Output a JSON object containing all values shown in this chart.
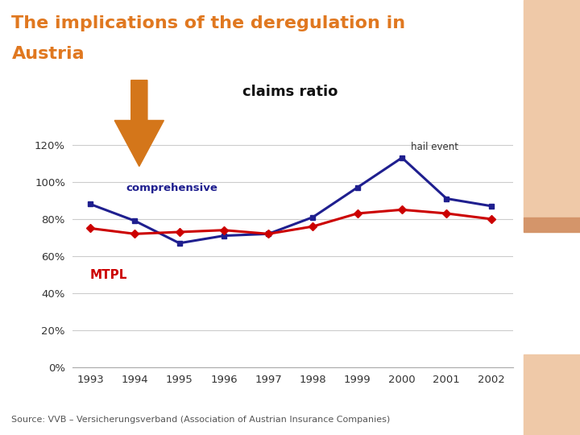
{
  "title_line1": "The implications of the deregulation in",
  "title_line2": "Austria",
  "title_color": "#E07820",
  "chart_label": "claims ratio",
  "years": [
    1993,
    1994,
    1995,
    1996,
    1997,
    1998,
    1999,
    2000,
    2001,
    2002
  ],
  "comprehensive": [
    88,
    79,
    67,
    71,
    72,
    81,
    97,
    113,
    91,
    87
  ],
  "mtpl": [
    75,
    72,
    73,
    74,
    72,
    76,
    83,
    85,
    83,
    80
  ],
  "comprehensive_color": "#1F1F8F",
  "mtpl_color": "#CC0000",
  "comprehensive_label": "comprehensive",
  "mtpl_label": "MTPL",
  "hail_event_label": "hail event",
  "ylim": [
    0,
    130
  ],
  "yticks": [
    0,
    20,
    40,
    60,
    80,
    100,
    120
  ],
  "ytick_labels": [
    "0%",
    "20%",
    "40%",
    "60%",
    "80%",
    "100%",
    "120%"
  ],
  "bg_color": "#FFFFFF",
  "plot_bg_color": "#FFFFFF",
  "source_text": "Source: VVB – Versicherungsverband (Association of Austrian Insurance Companies)",
  "arrow_color": "#D4761A",
  "right_bar_color": "#EFC9A8",
  "right_bar_mid_color": "#D4956A",
  "grid_color": "#CCCCCC"
}
